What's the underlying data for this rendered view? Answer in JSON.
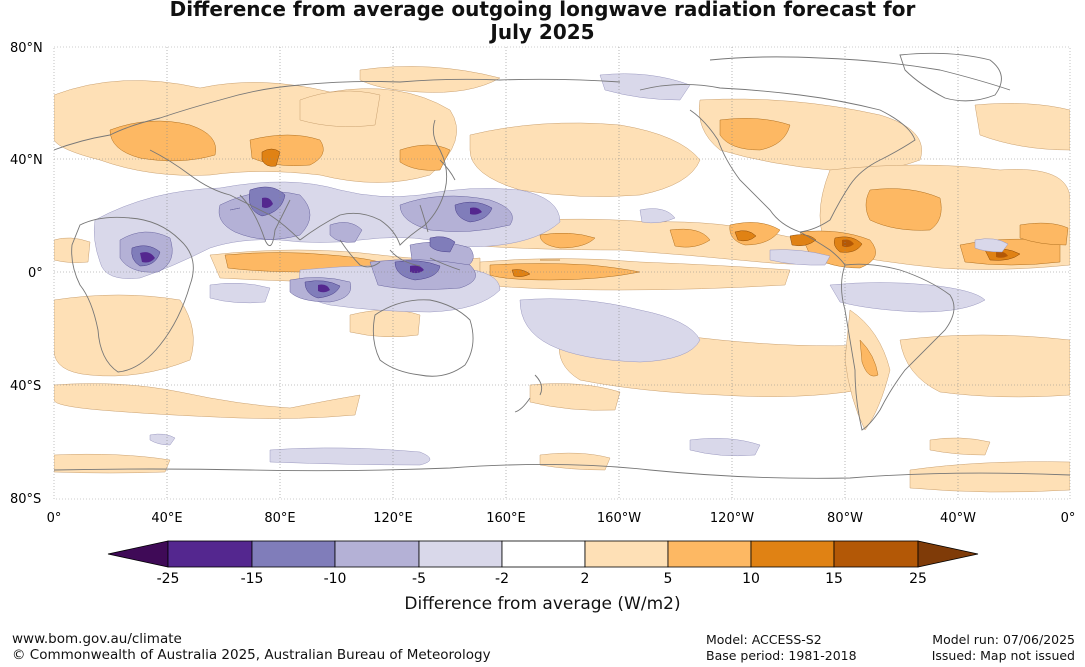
{
  "title": {
    "line1": "Difference from average outgoing longwave radiation forecast for",
    "line2": "July 2025"
  },
  "map": {
    "lat_labels": [
      "80°N",
      "40°N",
      "0°",
      "40°S",
      "80°S"
    ],
    "lon_labels": [
      "0°",
      "40°E",
      "80°E",
      "120°E",
      "160°E",
      "160°W",
      "120°W",
      "80°W",
      "40°W",
      "0°"
    ],
    "colors": {
      "neg25": "#3f0a57",
      "neg15": "#54278f",
      "neg10": "#807dba",
      "neg5": "#b4b1d6",
      "neg2": "#d9d8ea",
      "zero": "#ffffff",
      "pos2": "#fee0b6",
      "pos5": "#fdb863",
      "pos10": "#e08214",
      "pos15": "#b35806",
      "pos25": "#7f3b08",
      "coast": "#777777"
    }
  },
  "colorbar": {
    "ticks": [
      "-25",
      "-15",
      "-10",
      "-5",
      "-2",
      "2",
      "5",
      "10",
      "15",
      "25"
    ],
    "label": "Difference from average (W/m2)"
  },
  "footer": {
    "url": "www.bom.gov.au/climate",
    "copyright": "© Commonwealth of Australia 2025, Australian Bureau of Meteorology",
    "model": "Model: ACCESS-S2",
    "base_period": "Base period: 1981-2018",
    "model_run": "Model run: 07/06/2025",
    "issued": "Issued: Map not issued"
  }
}
